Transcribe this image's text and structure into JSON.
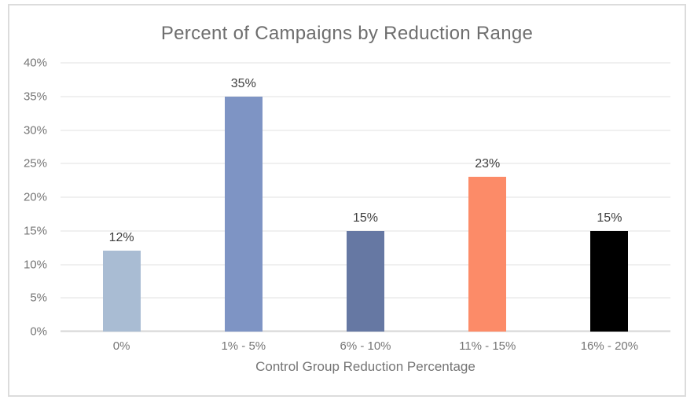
{
  "chart_data": {
    "type": "bar",
    "title": "Percent of Campaigns by Reduction Range",
    "xlabel": "Control Group Reduction Percentage",
    "ylabel": "",
    "categories": [
      "0%",
      "1% - 5%",
      "6% - 10%",
      "11% - 15%",
      "16% - 20%"
    ],
    "values": [
      12,
      35,
      15,
      23,
      15
    ],
    "data_labels": [
      "12%",
      "35%",
      "15%",
      "23%",
      "15%"
    ],
    "bar_colors": [
      "#a9bcd3",
      "#7e94c4",
      "#6678a3",
      "#fc8b68",
      "#000000"
    ],
    "y_ticks": [
      "40%",
      "35%",
      "30%",
      "25%",
      "20%",
      "15%",
      "10%",
      "5%",
      "0%"
    ],
    "ylim": [
      0,
      40
    ],
    "grid": true,
    "legend_position": "none",
    "colors": {
      "title_text": "#6e6e6e",
      "axis_text": "#757575",
      "data_label_text": "#3d3d3d",
      "gridline": "#e2e2e2",
      "baseline": "#d6d6d6",
      "frame_border": "#dcdcdc",
      "background": "#ffffff"
    }
  }
}
